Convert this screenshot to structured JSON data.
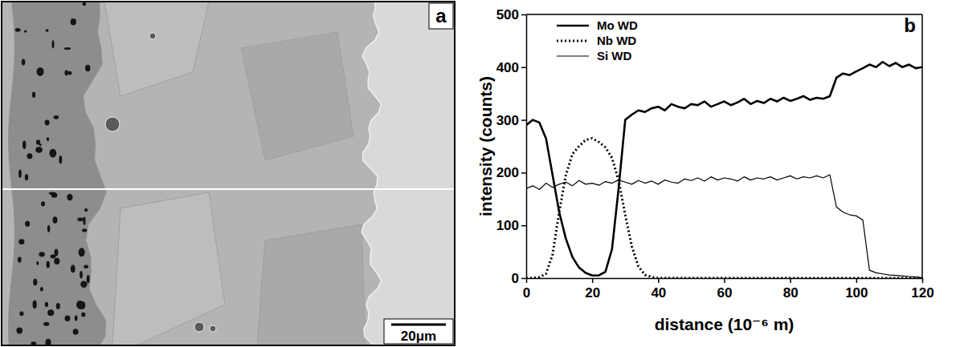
{
  "micrograph": {
    "panel_label": "a",
    "scale_bar_label": "20μm"
  },
  "chart_data": {
    "type": "line",
    "panel_label": "b",
    "x_label": "distance (10⁻⁶ m)",
    "y_label": "intensity (counts)",
    "xlim": [
      0,
      120
    ],
    "xticks": [
      0,
      20,
      40,
      60,
      80,
      100,
      120
    ],
    "ylim": [
      0,
      500
    ],
    "yticks": [
      0,
      100,
      200,
      300,
      400,
      500
    ],
    "grid": false,
    "legend": "upper left",
    "x": [
      0,
      2,
      4,
      6,
      8,
      10,
      12,
      14,
      16,
      18,
      20,
      22,
      24,
      26,
      28,
      30,
      32,
      34,
      36,
      38,
      40,
      42,
      44,
      46,
      48,
      50,
      52,
      54,
      56,
      58,
      60,
      62,
      64,
      66,
      68,
      70,
      72,
      74,
      76,
      78,
      80,
      82,
      84,
      86,
      88,
      90,
      92,
      94,
      96,
      98,
      100,
      102,
      104,
      106,
      108,
      110,
      112,
      114,
      116,
      118,
      120
    ],
    "series": [
      {
        "name": "Mo WD",
        "color": "#000000",
        "line_style": "solid",
        "values": [
          290,
          300,
          295,
          265,
          195,
          125,
          75,
          40,
          20,
          10,
          5,
          5,
          12,
          55,
          170,
          300,
          310,
          318,
          315,
          322,
          325,
          318,
          330,
          325,
          322,
          330,
          328,
          335,
          325,
          330,
          335,
          328,
          333,
          340,
          330,
          336,
          332,
          340,
          335,
          342,
          336,
          340,
          345,
          338,
          342,
          340,
          345,
          380,
          388,
          385,
          392,
          398,
          405,
          400,
          410,
          402,
          408,
          400,
          405,
          398,
          400
        ]
      },
      {
        "name": "Nb WD",
        "color": "#000000",
        "line_style": "dotted",
        "values": [
          0,
          0,
          2,
          8,
          45,
          125,
          195,
          235,
          250,
          262,
          265,
          258,
          248,
          228,
          185,
          120,
          60,
          22,
          6,
          2,
          0,
          0,
          0,
          0,
          0,
          0,
          0,
          0,
          0,
          0,
          0,
          0,
          0,
          0,
          0,
          0,
          0,
          0,
          0,
          0,
          0,
          0,
          0,
          0,
          0,
          0,
          0,
          0,
          0,
          0,
          0,
          0,
          0,
          0,
          0,
          0,
          0,
          0,
          0,
          0,
          0
        ]
      },
      {
        "name": "Si WD",
        "color": "#000000",
        "line_style": "solid",
        "values": [
          170,
          175,
          168,
          180,
          172,
          178,
          182,
          175,
          185,
          178,
          180,
          176,
          183,
          180,
          186,
          182,
          178,
          185,
          180,
          184,
          178,
          186,
          182,
          180,
          188,
          185,
          190,
          184,
          192,
          186,
          190,
          188,
          184,
          192,
          186,
          190,
          188,
          192,
          186,
          190,
          194,
          188,
          192,
          190,
          194,
          190,
          196,
          135,
          125,
          120,
          118,
          110,
          15,
          10,
          8,
          6,
          5,
          4,
          3,
          2,
          1
        ]
      }
    ]
  }
}
